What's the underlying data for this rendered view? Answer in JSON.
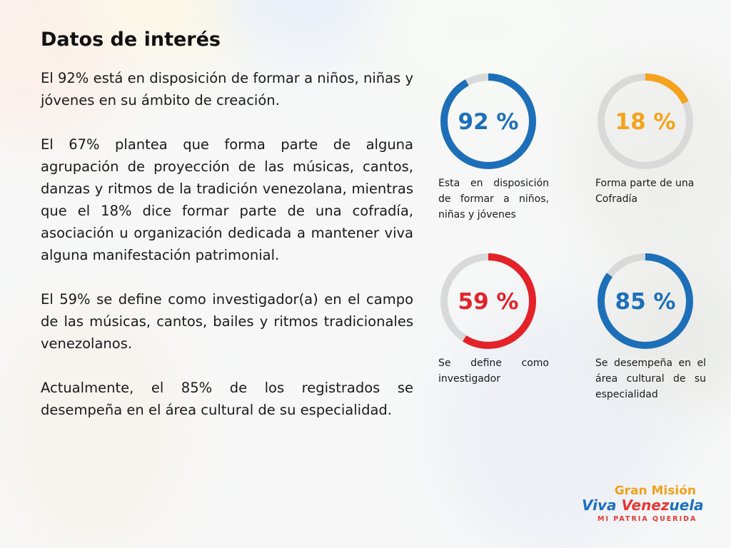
{
  "title": "Datos de interés",
  "paragraphs": [
    "El 92% está en disposición de formar a niños, niñas y jóvenes en su ámbito de creación.",
    "El 67% plantea que forma parte de alguna agrupación de proyección de las músicas, cantos, danzas y ritmos de la tradición venezolana, mientras que el 18% dice formar parte de una cofradía, asociación u organización dedicada a mantener viva alguna manifestación patrimonial.",
    "El 59% se define como investigador(a) en el campo de las músicas, cantos, bailes y ritmos tradicionales venezolanos.",
    "Actualmente, el 85% de los registrados se desempeña en el área cultural de su especialidad."
  ],
  "stats": [
    {
      "value": 92,
      "label": "92 %",
      "caption": "Esta en disposición de formar a niños, niñas y jóvenes",
      "color": "#1c6fb8"
    },
    {
      "value": 18,
      "label": "18 %",
      "caption": "Forma parte de una Cofradía",
      "color": "#f5a21c"
    },
    {
      "value": 59,
      "label": "59 %",
      "caption": "Se define como investigador",
      "color": "#e32229"
    },
    {
      "value": 85,
      "label": "85 %",
      "caption": "Se desempeña en el área cultural de su especialidad",
      "color": "#1c6fb8"
    }
  ],
  "ring_track_color": "#d9d9d9",
  "logo": {
    "line1": "Gran Misión",
    "line2a": "Viva",
    "line2b": "Venez",
    "line2c": "uela",
    "line3": "MI PATRIA QUERIDA"
  }
}
